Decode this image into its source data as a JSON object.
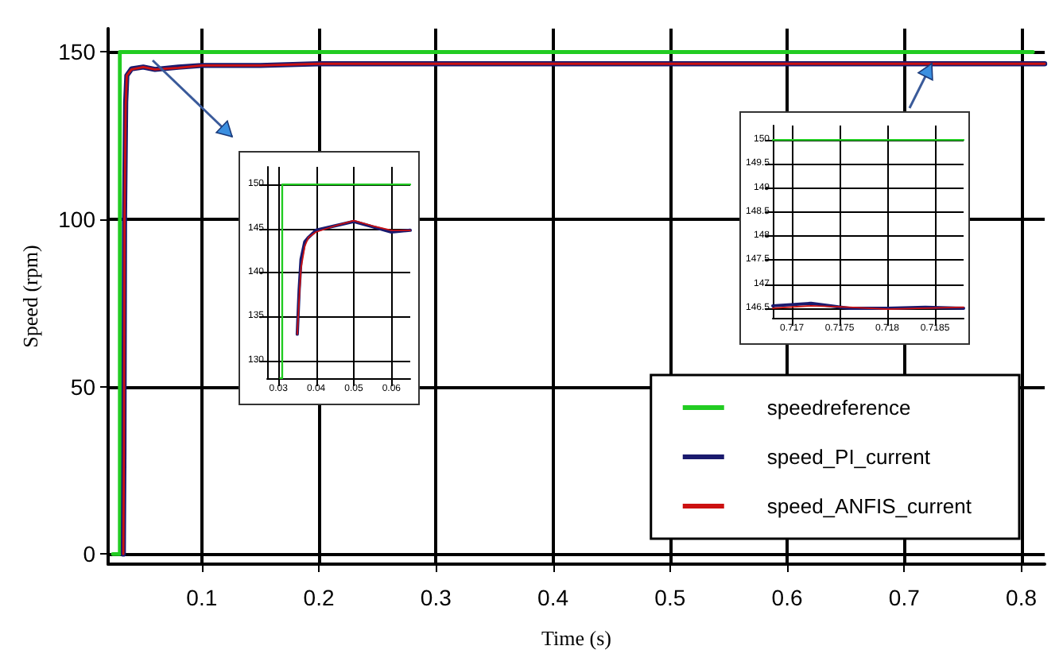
{
  "chart_data": [
    {
      "type": "line",
      "xlabel": "Time (s)",
      "ylabel": "Speed (rpm)",
      "xlim": [
        0.02,
        0.82
      ],
      "ylim": [
        -3,
        157
      ],
      "xticks": [
        0.1,
        0.2,
        0.3,
        0.4,
        0.5,
        0.6,
        0.7,
        0.8
      ],
      "yticks": [
        0,
        50,
        100,
        150
      ],
      "grid": true,
      "legend": "bottom right",
      "series": [
        {
          "name": "speedreference",
          "type": "step",
          "color": "#22cc22",
          "x": [
            0.024,
            0.03,
            0.81
          ],
          "values": [
            0,
            150,
            150
          ]
        },
        {
          "name": "speed_PI_current",
          "color": "#1a1a6e",
          "x": [
            0.033,
            0.0335,
            0.034,
            0.035,
            0.036,
            0.04,
            0.05,
            0.06,
            0.08,
            0.1,
            0.15,
            0.2,
            0.3,
            0.4,
            0.5,
            0.6,
            0.7,
            0.82
          ],
          "values": [
            0,
            30,
            100,
            135,
            143,
            145,
            145.5,
            144.8,
            145.5,
            146,
            146,
            146.5,
            146.5,
            146.5,
            146.5,
            146.5,
            146.5,
            146.5
          ]
        },
        {
          "name": "speed_ANFIS_current",
          "color": "#cc1111",
          "x": [
            0.033,
            0.0335,
            0.034,
            0.035,
            0.036,
            0.04,
            0.05,
            0.06,
            0.08,
            0.1,
            0.15,
            0.2,
            0.3,
            0.4,
            0.5,
            0.6,
            0.7,
            0.82
          ],
          "values": [
            0,
            30,
            100,
            134,
            143,
            144.8,
            145.5,
            144.8,
            145.3,
            146,
            146,
            146.5,
            146.5,
            146.5,
            146.5,
            146.5,
            146.5,
            146.5
          ]
        }
      ]
    },
    {
      "type": "line",
      "xlim": [
        0.027,
        0.065
      ],
      "ylim": [
        128,
        152
      ],
      "xticks": [
        0.03,
        0.04,
        0.05,
        0.06
      ],
      "yticks": [
        130,
        135,
        140,
        145,
        150
      ],
      "grid": true,
      "series": [
        {
          "type": "step",
          "color": "#22cc22",
          "x": [
            0.0305,
            0.031,
            0.065
          ],
          "values": [
            128,
            150,
            150
          ]
        },
        {
          "color": "#1a1a6e",
          "x": [
            0.035,
            0.0355,
            0.036,
            0.037,
            0.038,
            0.04,
            0.045,
            0.05,
            0.055,
            0.06,
            0.065
          ],
          "values": [
            133,
            138,
            141.5,
            143.5,
            144,
            144.8,
            145.3,
            145.8,
            145.2,
            144.6,
            144.8
          ]
        },
        {
          "color": "#cc1111",
          "x": [
            0.035,
            0.0355,
            0.036,
            0.037,
            0.038,
            0.04,
            0.045,
            0.05,
            0.055,
            0.06,
            0.065
          ],
          "values": [
            133,
            137,
            140.5,
            143,
            144,
            144.6,
            145.3,
            145.9,
            145.3,
            144.8,
            144.8
          ]
        }
      ]
    },
    {
      "type": "line",
      "xlim": [
        0.7168,
        0.7188
      ],
      "ylim": [
        146.3,
        150.3
      ],
      "xticks": [
        0.717,
        0.7175,
        0.718,
        0.7185
      ],
      "yticks": [
        146.5,
        147,
        147.5,
        148,
        148.5,
        149,
        149.5,
        150
      ],
      "grid": true,
      "series": [
        {
          "color": "#22cc22",
          "x": [
            0.7168,
            0.7188
          ],
          "values": [
            150,
            150
          ]
        },
        {
          "color": "#1a1a6e",
          "x": [
            0.7168,
            0.7172,
            0.7176,
            0.718,
            0.7184,
            0.7188
          ],
          "values": [
            146.55,
            146.6,
            146.5,
            146.5,
            146.52,
            146.5
          ]
        },
        {
          "color": "#cc1111",
          "x": [
            0.7168,
            0.7172,
            0.7176,
            0.718,
            0.7184,
            0.7188
          ],
          "values": [
            146.5,
            146.55,
            146.52,
            146.48,
            146.5,
            146.52
          ]
        }
      ]
    }
  ]
}
